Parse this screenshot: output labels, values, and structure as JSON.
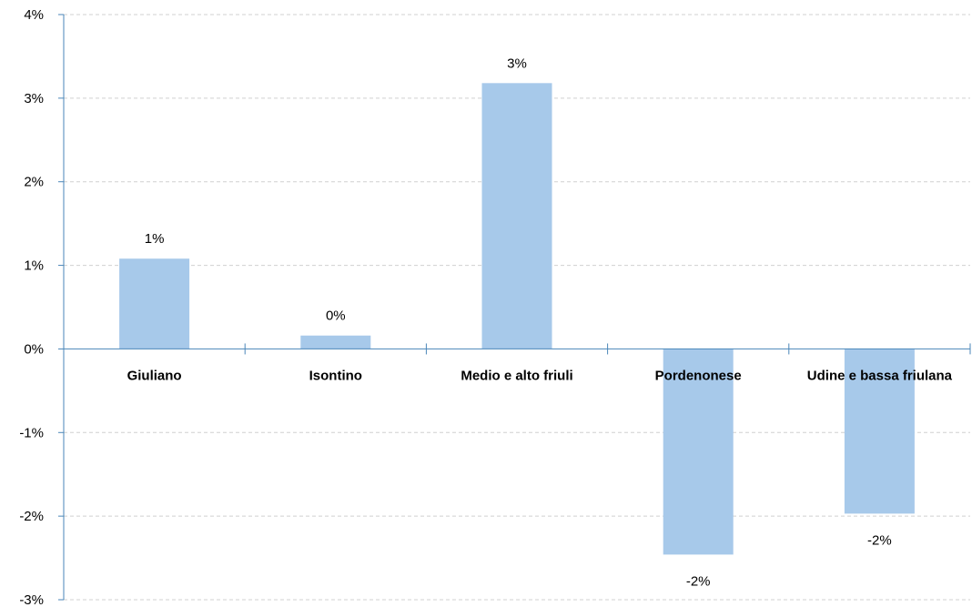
{
  "chart_data": {
    "type": "bar",
    "categories": [
      "Giuliano",
      "Isontino",
      "Medio e alto friuli",
      "Pordenonese",
      "Udine e bassa friulana"
    ],
    "values": [
      1.08,
      0.16,
      3.18,
      -2.46,
      -1.97
    ],
    "data_labels": [
      "1%",
      "0%",
      "3%",
      "-2%",
      "-2%"
    ],
    "y_ticks": [
      -3,
      -2,
      -1,
      0,
      1,
      2,
      3,
      4
    ],
    "y_tick_labels": [
      "-3%",
      "-2%",
      "-1%",
      "0%",
      "1%",
      "2%",
      "3%",
      "4%"
    ],
    "ylim": [
      -3,
      4
    ],
    "grid": true,
    "bar_color": "#a7c9ea",
    "axis_color": "#4a86b8",
    "grid_color": "#d0d0d0"
  }
}
